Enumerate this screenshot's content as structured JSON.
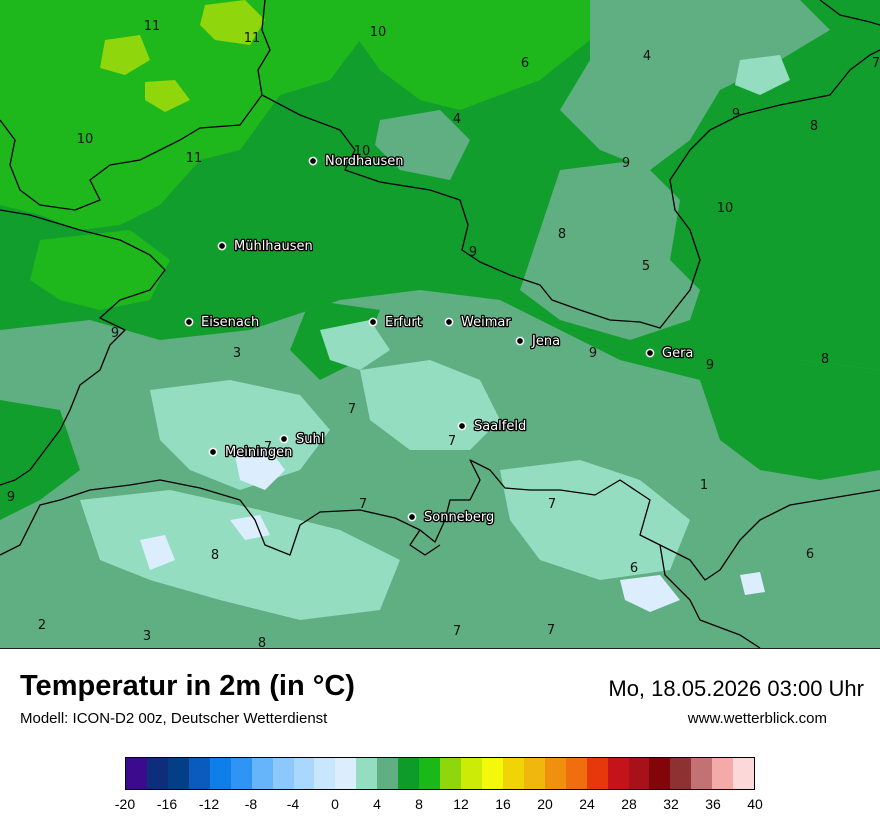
{
  "title": "Temperatur in 2m (in °C)",
  "model": "Modell: ICON-D2 00z, Deutscher Wetterdienst",
  "datetime": "Mo, 18.05.2026 03:00 Uhr",
  "website": "www.wetterblick.com",
  "cities": [
    {
      "name": "Nordhausen"
    },
    {
      "name": "Mühlhausen"
    },
    {
      "name": "Eisenach"
    },
    {
      "name": "Erfurt"
    },
    {
      "name": "Weimar"
    },
    {
      "name": "Jena"
    },
    {
      "name": "Gera"
    },
    {
      "name": "Saalfeld"
    },
    {
      "name": "Suhl"
    },
    {
      "name": "Meiningen"
    },
    {
      "name": "Sonneberg"
    }
  ],
  "map_values": [
    "11",
    "11",
    "10",
    "6",
    "4",
    "7",
    "10",
    "4",
    "9",
    "8",
    "11",
    "10",
    "9",
    "10",
    "8",
    "9",
    "5",
    "9",
    "3",
    "9",
    "8",
    "9",
    "7",
    "7",
    "7",
    "1",
    "7",
    "9",
    "7",
    "8",
    "6",
    "2",
    "3",
    "8",
    "6",
    "7",
    "7"
  ],
  "legend": {
    "ticks": [
      "-20",
      "-16",
      "-12",
      "-8",
      "-4",
      "0",
      "4",
      "8",
      "12",
      "16",
      "20",
      "24",
      "28",
      "32",
      "36",
      "40"
    ],
    "colors": [
      "#3c0a8c",
      "#0d2e7a",
      "#043e87",
      "#0a5bbd",
      "#0e7ee8",
      "#2e95f5",
      "#66b4fa",
      "#8cc8fb",
      "#aad7fd",
      "#c8e6fd",
      "#dceefe",
      "#95ddc1",
      "#5faf83",
      "#0d9b2a",
      "#1bb81a",
      "#8fd60d",
      "#ccec08",
      "#f4f80a",
      "#f0d406",
      "#f0b80d",
      "#f0900e",
      "#f06e0e",
      "#e6380a",
      "#c2141a",
      "#a8101a",
      "#820509",
      "#8c3232",
      "#c27272",
      "#f5aaaa",
      "#fdd8d8"
    ]
  }
}
